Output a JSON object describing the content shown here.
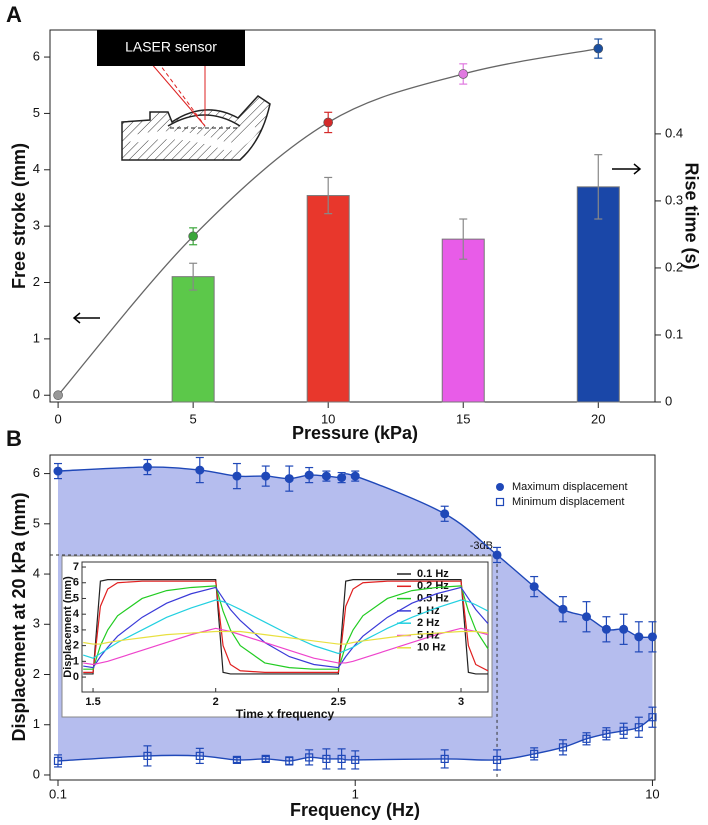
{
  "chart_data": [
    {
      "type": "combo",
      "panel_label": "A",
      "inset_label": "LASER sensor",
      "xlabel": "Pressure (kPa)",
      "ylabel": "Free stroke (mm)",
      "y2label": "Rise time (s)",
      "xlim": [
        -0.3,
        22.1
      ],
      "ylim": [
        -0.12,
        6.48
      ],
      "y2lim": [
        0,
        0.555
      ],
      "xticks": [
        0,
        5,
        10,
        15,
        20
      ],
      "yticks": [
        0,
        1,
        2,
        3,
        4,
        5,
        6
      ],
      "y2ticks": [
        0,
        0.1,
        0.2,
        0.3,
        0.4
      ],
      "line_color": "#666666",
      "stroke": {
        "x": [
          0,
          5,
          10,
          15,
          20
        ],
        "values": [
          0,
          2.82,
          4.84,
          5.7,
          6.15
        ],
        "errors": [
          0,
          0.15,
          0.18,
          0.18,
          0.17
        ],
        "colors": [
          "#999999",
          "#3aa63a",
          "#d42a2a",
          "#e07ae0",
          "#1a4fa0"
        ]
      },
      "rise_time": {
        "axis": "y2",
        "x": [
          5,
          10,
          15,
          20
        ],
        "values": [
          0.187,
          0.308,
          0.243,
          0.321
        ],
        "errors": [
          0.02,
          0.027,
          0.03,
          0.048
        ],
        "colors": [
          "#5cc84a",
          "#e8372c",
          "#e85ce8",
          "#1a47a8"
        ]
      }
    },
    {
      "type": "scatter",
      "panel_label": "B",
      "xlabel": "Frequency (Hz)",
      "ylabel": "Displacement at 20 kPa (mm)",
      "xscale": "log",
      "xlim": [
        0.094,
        10.2
      ],
      "ylim": [
        -0.1,
        6.37
      ],
      "xticks": [
        0.1,
        1,
        10
      ],
      "yticks": [
        0,
        1,
        2,
        3,
        4,
        5,
        6
      ],
      "legend": "upper right",
      "fill_color": "#b5bdee",
      "x": [
        0.1,
        0.2,
        0.3,
        0.4,
        0.5,
        0.6,
        0.7,
        0.8,
        0.9,
        1,
        2,
        3,
        4,
        5,
        6,
        7,
        8,
        9,
        10
      ],
      "series": [
        {
          "name": "Maximum displacement",
          "color": "#1f48b8",
          "marker": "filled",
          "values": [
            6.05,
            6.13,
            6.07,
            5.95,
            5.95,
            5.9,
            5.97,
            5.95,
            5.92,
            5.95,
            5.2,
            4.38,
            3.75,
            3.3,
            3.15,
            2.9,
            2.9,
            2.75,
            2.75
          ],
          "errors": [
            0.15,
            0.15,
            0.25,
            0.25,
            0.2,
            0.25,
            0.15,
            0.1,
            0.1,
            0.1,
            0.15,
            0.15,
            0.2,
            0.25,
            0.3,
            0.25,
            0.3,
            0.3,
            0.3
          ]
        },
        {
          "name": "Minimum displacement",
          "color": "#1f48b8",
          "marker": "open",
          "values": [
            0.28,
            0.38,
            0.38,
            0.3,
            0.32,
            0.28,
            0.35,
            0.32,
            0.32,
            0.3,
            0.32,
            0.3,
            0.42,
            0.55,
            0.72,
            0.82,
            0.88,
            0.95,
            1.15
          ],
          "errors": [
            0.12,
            0.2,
            0.15,
            0.05,
            0.05,
            0.08,
            0.15,
            0.2,
            0.2,
            0.18,
            0.18,
            0.2,
            0.12,
            0.15,
            0.12,
            0.12,
            0.15,
            0.2,
            0.2
          ]
        }
      ],
      "annotation": {
        "text": "-3dB",
        "x": 3,
        "y": 4.38
      }
    },
    {
      "type": "line",
      "xlabel": "Time x frequency",
      "ylabel": "Displacement (mm)",
      "xlim": [
        1.455,
        3.11
      ],
      "ylim": [
        -0.95,
        7.32
      ],
      "xticks": [
        1.5,
        2,
        2.5,
        3
      ],
      "yticks": [
        0,
        1,
        2,
        3,
        4,
        5,
        6,
        7
      ],
      "x": [
        1.46,
        1.5,
        1.53,
        1.56,
        1.6,
        1.7,
        1.8,
        1.9,
        2.0,
        2.03,
        2.06,
        2.1,
        2.2,
        2.3,
        2.4,
        2.5,
        2.53,
        2.56,
        2.6,
        2.7,
        2.8,
        2.9,
        3.0,
        3.03,
        3.06,
        3.11
      ],
      "series": [
        {
          "name": "0.1 Hz",
          "color": "#222222",
          "values": [
            0.2,
            0.2,
            6.1,
            6.2,
            6.2,
            6.2,
            6.2,
            6.2,
            6.2,
            0.3,
            0.2,
            0.2,
            0.2,
            0.2,
            0.2,
            0.2,
            6.1,
            6.2,
            6.2,
            6.2,
            6.2,
            6.2,
            6.2,
            0.3,
            0.2,
            0.2
          ]
        },
        {
          "name": "0.2 Hz",
          "color": "#e02020",
          "values": [
            0.3,
            0.3,
            4.5,
            5.6,
            6.0,
            6.1,
            6.1,
            6.1,
            6.1,
            2.0,
            0.8,
            0.4,
            0.3,
            0.3,
            0.3,
            0.3,
            4.5,
            5.6,
            6.0,
            6.1,
            6.1,
            6.1,
            6.1,
            2.0,
            0.8,
            0.4
          ]
        },
        {
          "name": "0.5 Hz",
          "color": "#22cc22",
          "values": [
            0.5,
            0.5,
            2.0,
            3.0,
            3.9,
            5.0,
            5.5,
            5.7,
            5.8,
            4.2,
            3.0,
            2.0,
            0.9,
            0.6,
            0.5,
            0.5,
            2.0,
            3.0,
            3.9,
            5.0,
            5.5,
            5.7,
            5.8,
            4.2,
            3.0,
            1.8
          ]
        },
        {
          "name": "1 Hz",
          "color": "#3a3ad8",
          "values": [
            0.7,
            0.6,
            1.3,
            1.9,
            2.6,
            3.8,
            4.7,
            5.3,
            5.7,
            5.0,
            4.3,
            3.6,
            2.2,
            1.3,
            0.8,
            0.6,
            1.3,
            1.9,
            2.6,
            3.8,
            4.7,
            5.3,
            5.7,
            5.0,
            4.3,
            3.4
          ]
        },
        {
          "name": "2 Hz",
          "color": "#22d0e0",
          "values": [
            1.4,
            1.2,
            1.5,
            1.8,
            2.2,
            3.0,
            3.8,
            4.4,
            4.9,
            4.8,
            4.6,
            4.3,
            3.5,
            2.7,
            2.0,
            1.5,
            1.7,
            1.9,
            2.3,
            3.1,
            3.8,
            4.4,
            4.9,
            4.8,
            4.6,
            4.2
          ]
        },
        {
          "name": "5 Hz",
          "color": "#ee44cc",
          "values": [
            0.9,
            0.8,
            0.9,
            1.0,
            1.2,
            1.7,
            2.2,
            2.7,
            3.1,
            3.0,
            2.9,
            2.7,
            2.2,
            1.7,
            1.2,
            0.9,
            0.9,
            1.0,
            1.2,
            1.7,
            2.2,
            2.7,
            3.1,
            3.0,
            2.9,
            2.7
          ]
        },
        {
          "name": "10 Hz",
          "color": "#e8e040",
          "values": [
            2.2,
            2.1,
            2.1,
            2.2,
            2.3,
            2.5,
            2.7,
            2.8,
            2.9,
            2.9,
            2.9,
            2.9,
            2.7,
            2.5,
            2.3,
            2.1,
            2.1,
            2.2,
            2.3,
            2.5,
            2.7,
            2.8,
            2.9,
            2.9,
            2.9,
            2.8
          ]
        }
      ]
    }
  ]
}
